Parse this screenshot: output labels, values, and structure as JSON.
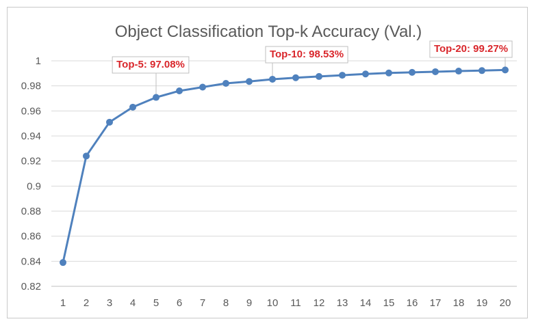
{
  "chart_data": {
    "type": "line",
    "title": "Object Classification Top-k Accuracy (Val.)",
    "xlabel": "",
    "ylabel": "",
    "x": [
      1,
      2,
      3,
      4,
      5,
      6,
      7,
      8,
      9,
      10,
      11,
      12,
      13,
      14,
      15,
      16,
      17,
      18,
      19,
      20
    ],
    "series": [
      {
        "values": [
          0.839,
          0.924,
          0.951,
          0.963,
          0.9708,
          0.976,
          0.979,
          0.982,
          0.9835,
          0.9853,
          0.9865,
          0.9875,
          0.9885,
          0.9895,
          0.9903,
          0.9908,
          0.9913,
          0.9918,
          0.9922,
          0.9927
        ],
        "color": "#4f81bd"
      }
    ],
    "ylim": [
      0.82,
      1.0
    ],
    "yticks": [
      "0.82",
      "0.84",
      "0.86",
      "0.88",
      "0.9",
      "0.92",
      "0.94",
      "0.96",
      "0.98",
      "1"
    ],
    "xticks": [
      "1",
      "2",
      "3",
      "4",
      "5",
      "6",
      "7",
      "8",
      "9",
      "10",
      "11",
      "12",
      "13",
      "14",
      "15",
      "16",
      "17",
      "18",
      "19",
      "20"
    ],
    "grid": true,
    "annotations": [
      {
        "x": 5,
        "text": "Top-5: 97.08%"
      },
      {
        "x": 10,
        "text": "Top-10: 98.53%"
      },
      {
        "x": 20,
        "text": "Top-20: 99.27%"
      }
    ],
    "annotation_color": "#d9262b",
    "gridline_color": "#d9d9d9"
  }
}
